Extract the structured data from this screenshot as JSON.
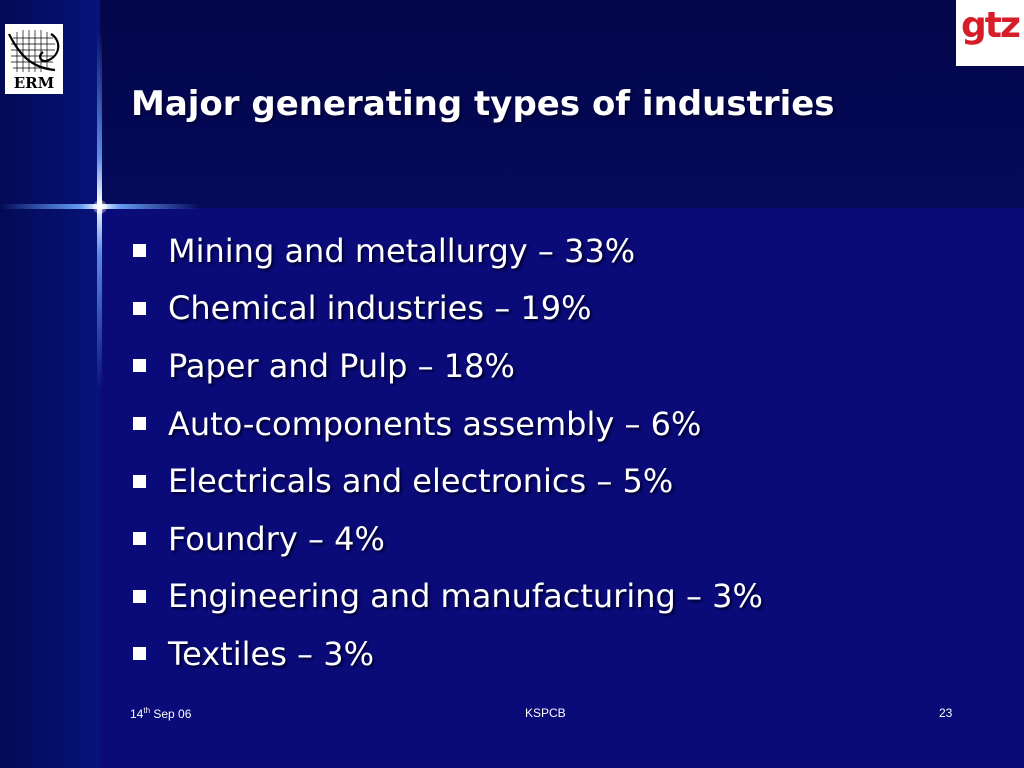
{
  "logos": {
    "left": "ERM",
    "right": "gtz"
  },
  "slide": {
    "title": "Major generating types of industries",
    "bullets": [
      "Mining and metallurgy – 33%",
      "Chemical industries – 19%",
      "Paper and Pulp – 18%",
      "Auto-components assembly – 6%",
      "Electricals and electronics – 5%",
      "Foundry – 4%",
      "Engineering and manufacturing – 3%",
      "Textiles – 3%"
    ]
  },
  "footer": {
    "date_day": "14",
    "date_suffix": "th",
    "date_rest": " Sep 06",
    "center": "KSPCB",
    "page": "23"
  },
  "colors": {
    "background": "#0a0a78",
    "top_band": "#03064a",
    "gtz_red": "#d61e2b",
    "text": "#ffffff"
  }
}
